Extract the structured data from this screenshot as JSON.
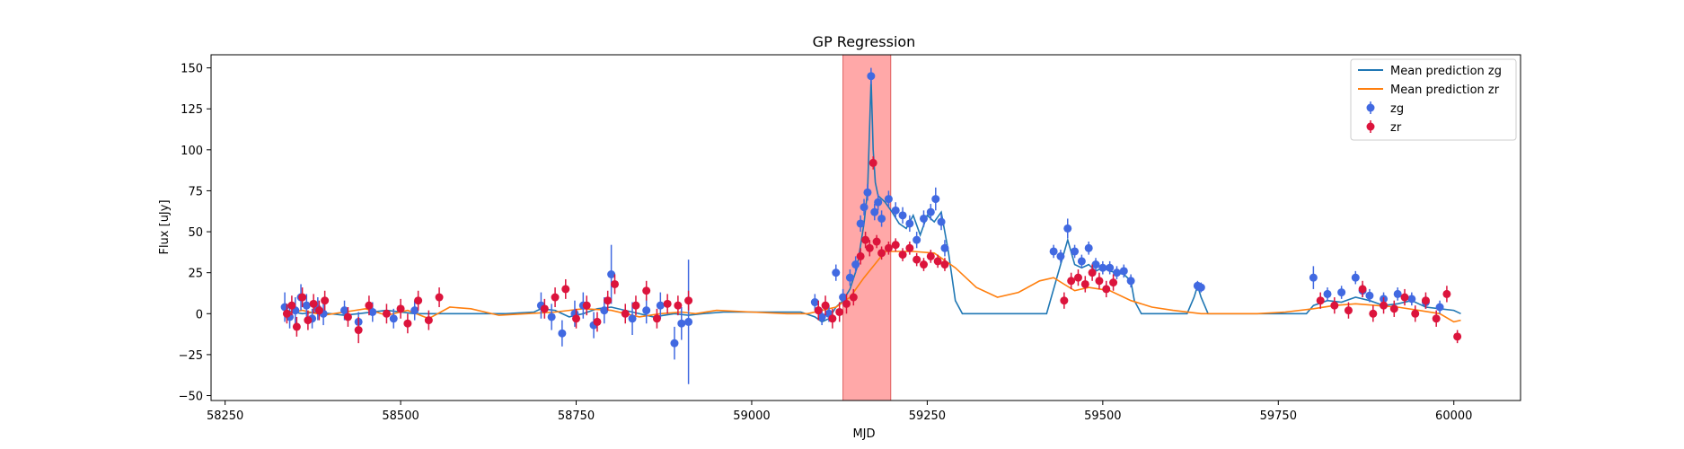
{
  "chart_data": {
    "type": "scatter",
    "title": "GP Regression",
    "xlabel": "MJD",
    "ylabel": "Flux [uJy]",
    "xlim": [
      58230,
      60095
    ],
    "ylim": [
      -53,
      158
    ],
    "xticks": [
      58250,
      58500,
      58750,
      59000,
      59250,
      59500,
      59750,
      60000
    ],
    "yticks": [
      -50,
      -25,
      0,
      25,
      50,
      75,
      100,
      125,
      150
    ],
    "grid": false,
    "legend_position": "top-right",
    "highlight_span": {
      "x0": 59130,
      "x1": 59198,
      "color": "#ff9999"
    },
    "series": [
      {
        "name": "Mean prediction zg",
        "kind": "line",
        "color": "#1f77b4",
        "x": [
          58335,
          58360,
          58380,
          58400,
          58420,
          58440,
          58480,
          58520,
          58560,
          58600,
          58650,
          58690,
          58700,
          58720,
          58740,
          58760,
          58780,
          58800,
          58830,
          58860,
          58890,
          58910,
          58930,
          58960,
          59000,
          59040,
          59070,
          59090,
          59100,
          59110,
          59120,
          59130,
          59140,
          59150,
          59160,
          59165,
          59170,
          59173,
          59176,
          59180,
          59190,
          59200,
          59210,
          59220,
          59230,
          59240,
          59250,
          59260,
          59270,
          59280,
          59290,
          59300,
          59320,
          59350,
          59380,
          59400,
          59420,
          59440,
          59450,
          59460,
          59470,
          59480,
          59490,
          59500,
          59510,
          59520,
          59530,
          59540,
          59545,
          59555,
          59570,
          59600,
          59620,
          59630,
          59635,
          59640,
          59650,
          59680,
          59720,
          59760,
          59790,
          59800,
          59820,
          59840,
          59860,
          59880,
          59900,
          59920,
          59940,
          59960,
          59980,
          60000,
          60010
        ],
        "y": [
          2,
          0,
          1,
          0,
          -1,
          0,
          2,
          0,
          0,
          0,
          0,
          1,
          3,
          2,
          -2,
          0,
          3,
          4,
          1,
          -2,
          0,
          -1,
          0,
          1,
          1,
          1,
          1,
          -2,
          -5,
          -3,
          4,
          8,
          15,
          28,
          55,
          75,
          143,
          100,
          80,
          72,
          68,
          62,
          55,
          52,
          60,
          48,
          60,
          56,
          62,
          38,
          8,
          0,
          0,
          0,
          0,
          0,
          0,
          30,
          45,
          30,
          28,
          30,
          26,
          28,
          26,
          25,
          24,
          20,
          8,
          0,
          0,
          0,
          0,
          10,
          17,
          10,
          0,
          0,
          0,
          0,
          0,
          5,
          8,
          7,
          10,
          8,
          5,
          6,
          8,
          4,
          3,
          2,
          0
        ]
      },
      {
        "name": "Mean prediction zr",
        "kind": "line",
        "color": "#ff7f0e",
        "x": [
          58335,
          58360,
          58390,
          58420,
          58450,
          58480,
          58510,
          58540,
          58570,
          58600,
          58640,
          58680,
          58720,
          58760,
          58800,
          58840,
          58870,
          58900,
          58920,
          58950,
          59000,
          59050,
          59080,
          59100,
          59120,
          59140,
          59160,
          59175,
          59190,
          59210,
          59230,
          59260,
          59290,
          59320,
          59350,
          59380,
          59410,
          59430,
          59445,
          59460,
          59480,
          59510,
          59540,
          59570,
          59600,
          59640,
          59680,
          59720,
          59760,
          59800,
          59830,
          59860,
          59890,
          59920,
          59950,
          59980,
          60000,
          60010
        ],
        "y": [
          0,
          2,
          -1,
          1,
          3,
          -1,
          2,
          -3,
          4,
          3,
          -1,
          0,
          1,
          3,
          2,
          -2,
          0,
          1,
          0,
          2,
          1,
          0,
          0,
          2,
          4,
          10,
          22,
          30,
          38,
          38,
          38,
          37,
          28,
          16,
          10,
          13,
          20,
          22,
          18,
          14,
          16,
          14,
          8,
          4,
          2,
          0,
          0,
          0,
          1,
          3,
          5,
          6,
          5,
          4,
          2,
          0,
          -5,
          -4
        ]
      },
      {
        "name": "zg",
        "kind": "errorbar",
        "color": "#4169e1",
        "x": [
          58335,
          58342,
          58350,
          58358,
          58366,
          58374,
          58382,
          58390,
          58420,
          58440,
          58460,
          58490,
          58520,
          58700,
          58715,
          58730,
          58748,
          58760,
          58775,
          58790,
          58800,
          58830,
          58850,
          58870,
          58890,
          58900,
          58910,
          59090,
          59100,
          59110,
          59120,
          59130,
          59140,
          59148,
          59155,
          59160,
          59165,
          59170,
          59175,
          59180,
          59185,
          59195,
          59205,
          59215,
          59225,
          59235,
          59245,
          59255,
          59262,
          59270,
          59275,
          59430,
          59440,
          59450,
          59460,
          59470,
          59480,
          59490,
          59500,
          59510,
          59520,
          59530,
          59540,
          59635,
          59640,
          59800,
          59820,
          59840,
          59860,
          59870,
          59880,
          59900,
          59920,
          59940,
          59960,
          59980
        ],
        "y": [
          4,
          -2,
          2,
          10,
          5,
          -3,
          3,
          0,
          2,
          -5,
          1,
          -3,
          2,
          5,
          -2,
          -12,
          0,
          5,
          -7,
          2,
          24,
          -3,
          2,
          5,
          -18,
          -6,
          -5,
          7,
          -2,
          0,
          25,
          10,
          22,
          30,
          55,
          65,
          74,
          145,
          62,
          68,
          58,
          70,
          63,
          60,
          55,
          45,
          58,
          62,
          70,
          56,
          40,
          38,
          35,
          52,
          38,
          32,
          40,
          30,
          28,
          28,
          25,
          26,
          20,
          17,
          16,
          22,
          12,
          13,
          22,
          14,
          11,
          9,
          12,
          9,
          7,
          4
        ],
        "err": [
          9,
          7,
          8,
          8,
          7,
          6,
          7,
          7,
          6,
          6,
          6,
          6,
          6,
          8,
          8,
          8,
          8,
          8,
          8,
          8,
          18,
          10,
          8,
          8,
          10,
          10,
          38,
          5,
          5,
          5,
          5,
          5,
          5,
          5,
          5,
          5,
          5,
          5,
          5,
          5,
          5,
          5,
          5,
          5,
          5,
          5,
          5,
          5,
          7,
          5,
          5,
          4,
          4,
          6,
          4,
          4,
          4,
          4,
          4,
          4,
          4,
          4,
          4,
          3,
          3,
          7,
          4,
          4,
          4,
          4,
          4,
          4,
          4,
          4,
          4,
          4
        ]
      },
      {
        "name": "zr",
        "kind": "errorbar",
        "color": "#dc143c",
        "x": [
          58338,
          58345,
          58352,
          58360,
          58368,
          58376,
          58384,
          58392,
          58425,
          58440,
          58455,
          58480,
          58500,
          58510,
          58525,
          58540,
          58555,
          58705,
          58720,
          58735,
          58750,
          58765,
          58780,
          58795,
          58805,
          58820,
          58835,
          58850,
          58865,
          58880,
          58895,
          58910,
          59095,
          59105,
          59115,
          59125,
          59135,
          59145,
          59155,
          59162,
          59168,
          59173,
          59178,
          59185,
          59195,
          59205,
          59215,
          59225,
          59235,
          59245,
          59255,
          59265,
          59275,
          59445,
          59455,
          59465,
          59475,
          59485,
          59495,
          59505,
          59515,
          59810,
          59830,
          59850,
          59870,
          59885,
          59900,
          59915,
          59930,
          59945,
          59960,
          59975,
          59990,
          60005
        ],
        "y": [
          0,
          5,
          -8,
          10,
          -4,
          6,
          2,
          8,
          -2,
          -10,
          5,
          0,
          3,
          -6,
          8,
          -4,
          10,
          3,
          10,
          15,
          -3,
          5,
          -5,
          8,
          18,
          0,
          5,
          14,
          -3,
          6,
          5,
          8,
          2,
          5,
          -3,
          1,
          6,
          10,
          35,
          45,
          40,
          92,
          44,
          37,
          40,
          42,
          36,
          40,
          33,
          30,
          35,
          32,
          30,
          8,
          20,
          22,
          18,
          25,
          20,
          15,
          19,
          8,
          5,
          2,
          15,
          0,
          5,
          3,
          10,
          0,
          8,
          -3,
          12,
          -14
        ],
        "err": [
          6,
          6,
          6,
          6,
          6,
          6,
          6,
          6,
          6,
          8,
          6,
          6,
          6,
          6,
          6,
          6,
          6,
          6,
          6,
          6,
          6,
          6,
          6,
          6,
          6,
          6,
          6,
          6,
          6,
          6,
          6,
          6,
          6,
          6,
          6,
          6,
          6,
          5,
          5,
          5,
          5,
          4,
          4,
          4,
          4,
          4,
          4,
          4,
          4,
          4,
          4,
          4,
          4,
          5,
          5,
          5,
          5,
          5,
          5,
          5,
          5,
          5,
          5,
          5,
          5,
          5,
          5,
          5,
          5,
          5,
          5,
          5,
          5,
          4
        ]
      }
    ]
  }
}
